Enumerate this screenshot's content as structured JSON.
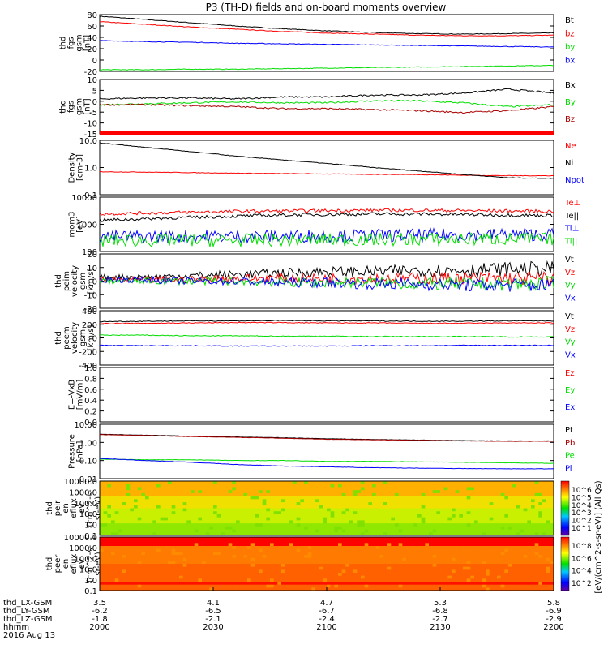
{
  "title": "P3 (TH-D) fields and on-board moments overview",
  "chart_data": {
    "type": "line",
    "title": "P3 (TH-D) fields and on-board moments overview",
    "x": {
      "label": "hhmm",
      "date": "2016 Aug 13",
      "ticks": [
        "2000",
        "2030",
        "2100",
        "2130",
        "2200"
      ],
      "ephemeris": [
        {
          "name": "thd_LX-GSM",
          "values": [
            "3.5",
            "4.1",
            "4.7",
            "5.3",
            "5.8"
          ]
        },
        {
          "name": "thd_LY-GSM",
          "values": [
            "-6.2",
            "-6.5",
            "-6.7",
            "-6.8",
            "-6.9"
          ]
        },
        {
          "name": "thd_LZ-GSM",
          "values": [
            "-1.8",
            "-2.1",
            "-2.4",
            "-2.7",
            "-2.9"
          ]
        }
      ]
    },
    "panels": [
      {
        "ylabel": [
          "thd",
          "fgs",
          "gsm",
          "[nT]"
        ],
        "ylim": [
          -20,
          85
        ],
        "yticks": [
          "80",
          "60",
          "40",
          "20",
          "0",
          "-20"
        ],
        "series": [
          {
            "name": "Bt",
            "color": "#000000",
            "values": [
              82,
              76,
              70,
              64,
              59,
              55,
              52,
              50,
              49,
              50,
              51
            ]
          },
          {
            "name": "bz",
            "color": "#ff0000",
            "values": [
              72,
              67,
              62,
              58,
              54,
              51,
              49,
              47,
              46,
              46,
              47
            ]
          },
          {
            "name": "by",
            "color": "#00dd00",
            "values": [
              -17,
              -17,
              -16,
              -16,
              -15,
              -14,
              -13,
              -12,
              -11,
              -10,
              -9
            ]
          },
          {
            "name": "bx",
            "color": "#0000ff",
            "values": [
              37,
              35,
              34,
              32,
              31,
              30,
              29,
              28,
              27,
              26,
              25
            ]
          }
        ]
      },
      {
        "ylabel": [
          "thd",
          "fgs",
          "gsm",
          "[nT]"
        ],
        "ylim": [
          -18,
          10
        ],
        "yticks": [
          "10",
          "5",
          "0",
          "-5",
          "-10",
          "-15"
        ],
        "series": [
          {
            "name": "Bx",
            "color": "#000000",
            "values": [
              0,
              0.5,
              0.5,
              0,
              1,
              1,
              2,
              2,
              3,
              5,
              3
            ]
          },
          {
            "name": "By",
            "color": "#00dd00",
            "values": [
              -3,
              -2.5,
              -2,
              -1.5,
              -2,
              -2,
              -1,
              -1,
              -2,
              -4,
              -3
            ]
          },
          {
            "name": "Bz",
            "color": "#aa0000",
            "values": [
              -3,
              -3,
              -3.5,
              -4,
              -5,
              -5,
              -5.5,
              -6,
              -7,
              -6,
              -4
            ]
          }
        ]
      },
      {
        "ylabel": [
          "Density",
          "[cm-3]"
        ],
        "scale": "log",
        "ylim": [
          0.1,
          10
        ],
        "yticks": [
          "10.0",
          "1.0",
          "0.1"
        ],
        "series": [
          {
            "name": "Ne",
            "color": "#ff0000",
            "values": [
              0.7,
              0.68,
              0.65,
              0.62,
              0.6,
              0.58,
              0.56,
              0.55,
              0.52,
              0.5,
              0.5
            ]
          },
          {
            "name": "Ni",
            "color": "#000000",
            "values": [
              8,
              5.5,
              3.8,
              2.6,
              1.9,
              1.4,
              1.0,
              0.75,
              0.55,
              0.42,
              0.4
            ]
          },
          {
            "name": "Npot",
            "color": "#0000ff",
            "values": []
          }
        ]
      },
      {
        "ylabel": [
          "mom3",
          "[eV]"
        ],
        "scale": "log",
        "ylim": [
          100,
          10000
        ],
        "yticks": [
          "10000",
          "1000",
          "100"
        ],
        "series": [
          {
            "name": "Te⊥",
            "color": "#ff0000",
            "values": [
              2400,
              2600,
              2800,
              3000,
              3100,
              3200,
              3300,
              3300,
              3200,
              3100,
              3000
            ]
          },
          {
            "name": "Te||",
            "color": "#000000",
            "values": [
              1400,
              1600,
              1800,
              2000,
              2200,
              2300,
              2400,
              2400,
              2300,
              2200,
              2100
            ]
          },
          {
            "name": "Ti⊥",
            "color": "#0000ff",
            "values": [
              350,
              360,
              360,
              370,
              370,
              380,
              390,
              400,
              410,
              420,
              420
            ]
          },
          {
            "name": "Ti||",
            "color": "#00dd00",
            "values": [
              250,
              255,
              260,
              260,
              265,
              270,
              275,
              280,
              285,
              290,
              290
            ]
          }
        ]
      },
      {
        "ylabel": [
          "thd",
          "peim",
          "velocity",
          "gsm",
          "[km/s]"
        ],
        "ylim": [
          -20,
          20
        ],
        "yticks": [
          "20",
          "10",
          "0",
          "-10",
          "-20"
        ],
        "series": [
          {
            "name": "Vt",
            "color": "#000000",
            "values": [
              3,
              3,
              4,
              5,
              6,
              7,
              7,
              8,
              8,
              9,
              9
            ]
          },
          {
            "name": "Vz",
            "color": "#ff0000",
            "values": [
              1,
              1,
              1,
              2,
              2,
              2,
              2,
              2,
              2,
              2,
              2
            ]
          },
          {
            "name": "Vy",
            "color": "#00dd00",
            "values": [
              0,
              0,
              0,
              0,
              -1,
              -1,
              -1,
              -2,
              -2,
              -2,
              -2
            ]
          },
          {
            "name": "Vx",
            "color": "#0000ff",
            "values": [
              1,
              1,
              0,
              0,
              -1,
              -1,
              -2,
              -2,
              -3,
              -3,
              -3
            ]
          }
        ]
      },
      {
        "ylabel": [
          "thd",
          "peem",
          "velocity",
          "gsm",
          "[km/s]"
        ],
        "ylim": [
          -400,
          400
        ],
        "yticks": [
          "400",
          "200",
          "0",
          "-200",
          "-400"
        ],
        "series": [
          {
            "name": "Vt",
            "color": "#000000",
            "values": [
              240,
              245,
              250,
              250,
              255,
              250,
              250,
              245,
              245,
              250,
              250
            ]
          },
          {
            "name": "Vz",
            "color": "#ff0000",
            "values": [
              210,
              215,
              220,
              225,
              225,
              220,
              220,
              215,
              215,
              220,
              220
            ]
          },
          {
            "name": "Vy",
            "color": "#00dd00",
            "values": [
              40,
              40,
              30,
              30,
              25,
              25,
              20,
              20,
              20,
              15,
              15
            ]
          },
          {
            "name": "Vx",
            "color": "#0000ff",
            "values": [
              -110,
              -115,
              -115,
              -120,
              -120,
              -120,
              -115,
              -115,
              -110,
              -110,
              -110
            ]
          }
        ]
      },
      {
        "ylabel": [
          "E=-VxB",
          "[mV/m]"
        ],
        "ylim": [
          0,
          1
        ],
        "yticks": [
          "1.0",
          "0.8",
          "0.6",
          "0.4",
          "0.2",
          "0.0"
        ],
        "series": [
          {
            "name": "Ez",
            "color": "#ff0000",
            "values": []
          },
          {
            "name": "Ey",
            "color": "#00dd00",
            "values": []
          },
          {
            "name": "Ex",
            "color": "#0000ff",
            "values": []
          }
        ]
      },
      {
        "ylabel": [
          "Pressure",
          "[nPa]"
        ],
        "scale": "log",
        "ylim": [
          0.01,
          10
        ],
        "yticks": [
          "10.00",
          "1.00",
          "0.10",
          "0.01"
        ],
        "series": [
          {
            "name": "Pt",
            "color": "#000000",
            "values": [
              2.8,
              2.5,
              2.2,
              2.0,
              1.8,
              1.6,
              1.45,
              1.35,
              1.25,
              1.2,
              1.2
            ]
          },
          {
            "name": "Pb",
            "color": "#aa0000",
            "values": [
              2.7,
              2.4,
              2.1,
              1.9,
              1.7,
              1.5,
              1.4,
              1.3,
              1.2,
              1.15,
              1.15
            ]
          },
          {
            "name": "Pe",
            "color": "#00dd00",
            "values": [
              0.12,
              0.11,
              0.11,
              0.1,
              0.1,
              0.09,
              0.09,
              0.085,
              0.08,
              0.075,
              0.07
            ]
          },
          {
            "name": "Pi",
            "color": "#0000ff",
            "values": [
              0.13,
              0.1,
              0.08,
              0.06,
              0.05,
              0.045,
              0.04,
              0.038,
              0.036,
              0.035,
              0.035
            ]
          }
        ]
      },
      {
        "type": "heatmap",
        "ylabel": [
          "thd",
          "peir",
          "en",
          "eflux",
          "eV",
          "(cm^2-s-",
          "sr-eV)"
        ],
        "scale": "log",
        "yticks": [
          "10000.0",
          "1000.0",
          "100.0",
          "10.0",
          "1.0",
          "0.1"
        ],
        "colorbar_ticks": [
          "10^6",
          "10^5",
          "10^4",
          "10^3",
          "10^2",
          "10^1"
        ]
      },
      {
        "type": "heatmap",
        "ylabel": [
          "thd",
          "peer",
          "en",
          "eflux",
          "eV",
          "(cm^2-s-",
          "sr-eV)"
        ],
        "scale": "log",
        "yticks": [
          "10000.0",
          "1000.0",
          "100.0",
          "10.0",
          "1.0",
          "0.1"
        ],
        "colorbar_ticks": [
          "10^8",
          "10^6",
          "10^4",
          "10^2"
        ]
      }
    ],
    "colorbar_label": "[eV/(cm^2-s-sr-eV)] (All Qs)"
  }
}
